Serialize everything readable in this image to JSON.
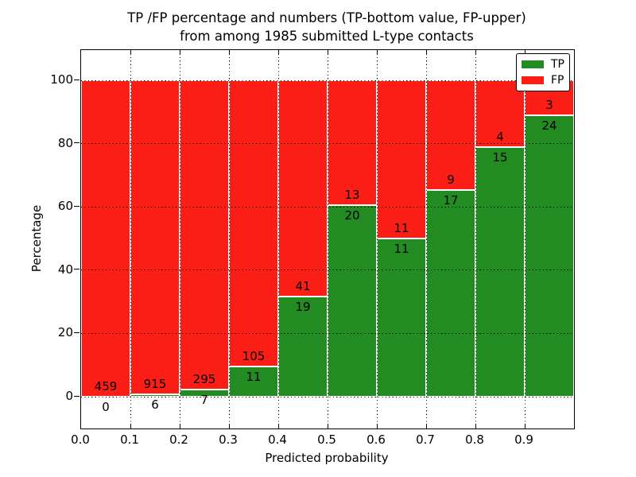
{
  "title": {
    "line1": "TP /FP percentage and numbers (TP-bottom value, FP-upper)",
    "line2": "from among 1985 submitted L-type contacts"
  },
  "chart_data": {
    "type": "bar",
    "subtype": "stacked-percentage",
    "title": "TP /FP percentage and numbers (TP-bottom value, FP-upper) from among 1985 submitted L-type contacts",
    "xlabel": "Predicted probability",
    "ylabel": "Percentage",
    "categories": [
      "0.0-0.1",
      "0.1-0.2",
      "0.2-0.3",
      "0.3-0.4",
      "0.4-0.5",
      "0.5-0.6",
      "0.6-0.7",
      "0.7-0.8",
      "0.8-0.9",
      "0.9-1.0"
    ],
    "x_tick_labels": [
      "0.0",
      "0.1",
      "0.2",
      "0.3",
      "0.4",
      "0.5",
      "0.6",
      "0.7",
      "0.8",
      "0.9"
    ],
    "y_ticks": [
      0,
      20,
      40,
      60,
      80,
      100
    ],
    "xlim": [
      0.0,
      1.0
    ],
    "ylim": [
      -10,
      110
    ],
    "grid": "dotted, both axes, drawn over bars",
    "series": [
      {
        "name": "TP",
        "color": "#228b22",
        "position": "bottom",
        "counts": [
          0,
          6,
          7,
          11,
          19,
          20,
          11,
          17,
          15,
          24
        ]
      },
      {
        "name": "FP",
        "color": "#fb1e17",
        "position": "upper",
        "counts": [
          459,
          915,
          295,
          105,
          41,
          13,
          11,
          9,
          4,
          3
        ]
      }
    ],
    "tp_percent": [
      0.0,
      0.65,
      2.32,
      9.48,
      31.67,
      60.61,
      50.0,
      65.38,
      78.95,
      88.89
    ],
    "total_contacts": 1985,
    "legend": {
      "position": "upper right",
      "entries": [
        {
          "label": "TP",
          "color": "#228b22"
        },
        {
          "label": "FP",
          "color": "#fb1e17"
        }
      ]
    }
  },
  "colors": {
    "tp_green": "#228b22",
    "fp_red": "#fb1e17",
    "bar_edge": "#ffffff",
    "grid": "#000000",
    "background": "#ffffff"
  }
}
